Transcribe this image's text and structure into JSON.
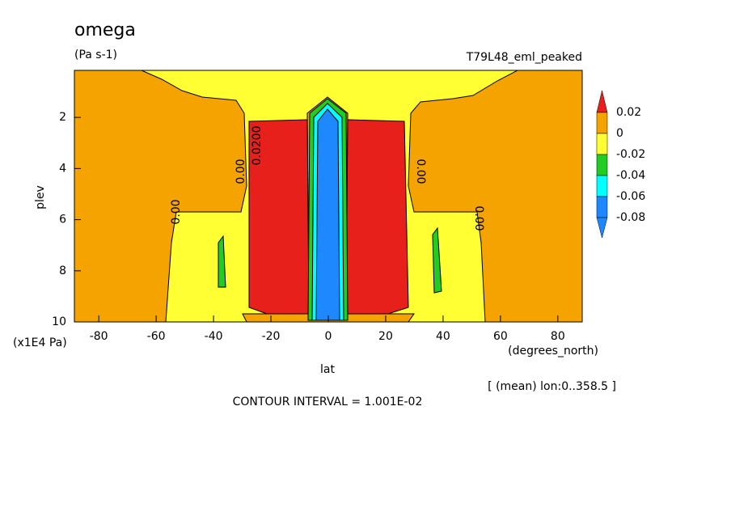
{
  "chart_data": {
    "type": "contour",
    "title": "omega",
    "subtitle": "(Pa s-1)",
    "dataset": "T79L48_eml_peaked",
    "x_label": "lat",
    "y_label": "plev",
    "x_units": "(degrees_north)",
    "y_units": "(x1E4 Pa)",
    "note": "[ (mean) lon:0..358.5 ]",
    "contour_interval": "CONTOUR INTERVAL = 1.001E-02",
    "xlim": [
      -88.5,
      88.5
    ],
    "xticks": [
      -80,
      -60,
      -40,
      -20,
      0,
      20,
      40,
      60,
      80
    ],
    "ylim": [
      10,
      0.16
    ],
    "yticks": [
      2,
      4,
      6,
      8,
      10
    ],
    "levels": [
      0.02,
      0,
      -0.02,
      -0.04,
      -0.06,
      -0.08
    ],
    "colors": [
      "#e8201c",
      "#f5a300",
      "#ffff33",
      "#22cc22",
      "#00ffff",
      "#1e88ff",
      "#1e88ff"
    ],
    "contour_labels": [
      "0.00",
      "0.0200",
      "0.00",
      "0.00",
      "0.00"
    ]
  }
}
